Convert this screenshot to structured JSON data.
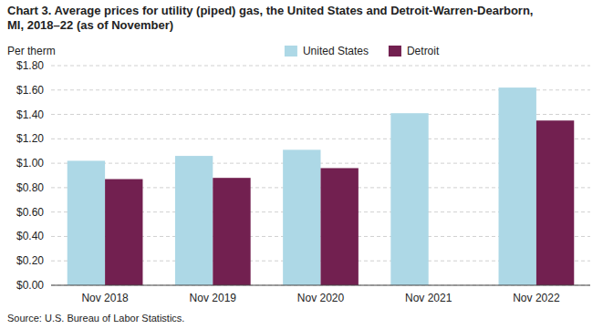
{
  "chart_data": {
    "type": "bar",
    "title": "Chart 3. Average prices for utility (piped) gas, the United States and Detroit-Warren-Dearborn,\nMI, 2018–22 (as of November)",
    "y_label": "Per therm",
    "source": "Source: U.S. Bureau of Labor Statistics.",
    "categories": [
      "Nov 2018",
      "Nov 2019",
      "Nov 2020",
      "Nov 2021",
      "Nov 2022"
    ],
    "series": [
      {
        "name": "United States",
        "color": "#add8e6",
        "values": [
          1.02,
          1.06,
          1.11,
          1.41,
          1.62
        ]
      },
      {
        "name": "Detroit",
        "color": "#722050",
        "values": [
          0.87,
          0.88,
          0.96,
          null,
          1.35
        ]
      }
    ],
    "ylim": [
      0.0,
      1.8
    ],
    "yticks": [
      {
        "value": 0.0,
        "label": "$0.00"
      },
      {
        "value": 0.2,
        "label": "$0.20"
      },
      {
        "value": 0.4,
        "label": "$0.40"
      },
      {
        "value": 0.6,
        "label": "$0.60"
      },
      {
        "value": 0.8,
        "label": "$0.80"
      },
      {
        "value": 1.0,
        "label": "$1.00"
      },
      {
        "value": 1.2,
        "label": "$1.20"
      },
      {
        "value": 1.4,
        "label": "$1.40"
      },
      {
        "value": 1.6,
        "label": "$1.60"
      },
      {
        "value": 1.8,
        "label": "$1.80"
      }
    ],
    "grid": true,
    "legend": "top"
  }
}
